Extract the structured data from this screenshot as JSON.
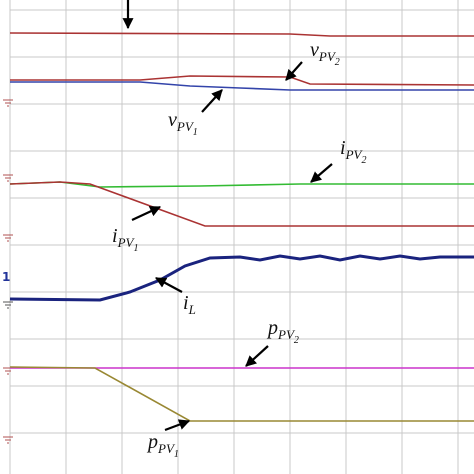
{
  "channel_marker": "1",
  "labels": [
    {
      "main": "v",
      "sub": "PV",
      "subsub": "2"
    },
    {
      "main": "v",
      "sub": "PV",
      "subsub": "1"
    },
    {
      "main": "i",
      "sub": "PV",
      "subsub": "2"
    },
    {
      "main": "i",
      "sub": "PV",
      "subsub": "1"
    },
    {
      "main": "i",
      "sub": "L"
    },
    {
      "main": "p",
      "sub": "PV",
      "subsub": "2"
    },
    {
      "main": "p",
      "sub": "PV",
      "subsub": "1"
    }
  ]
}
